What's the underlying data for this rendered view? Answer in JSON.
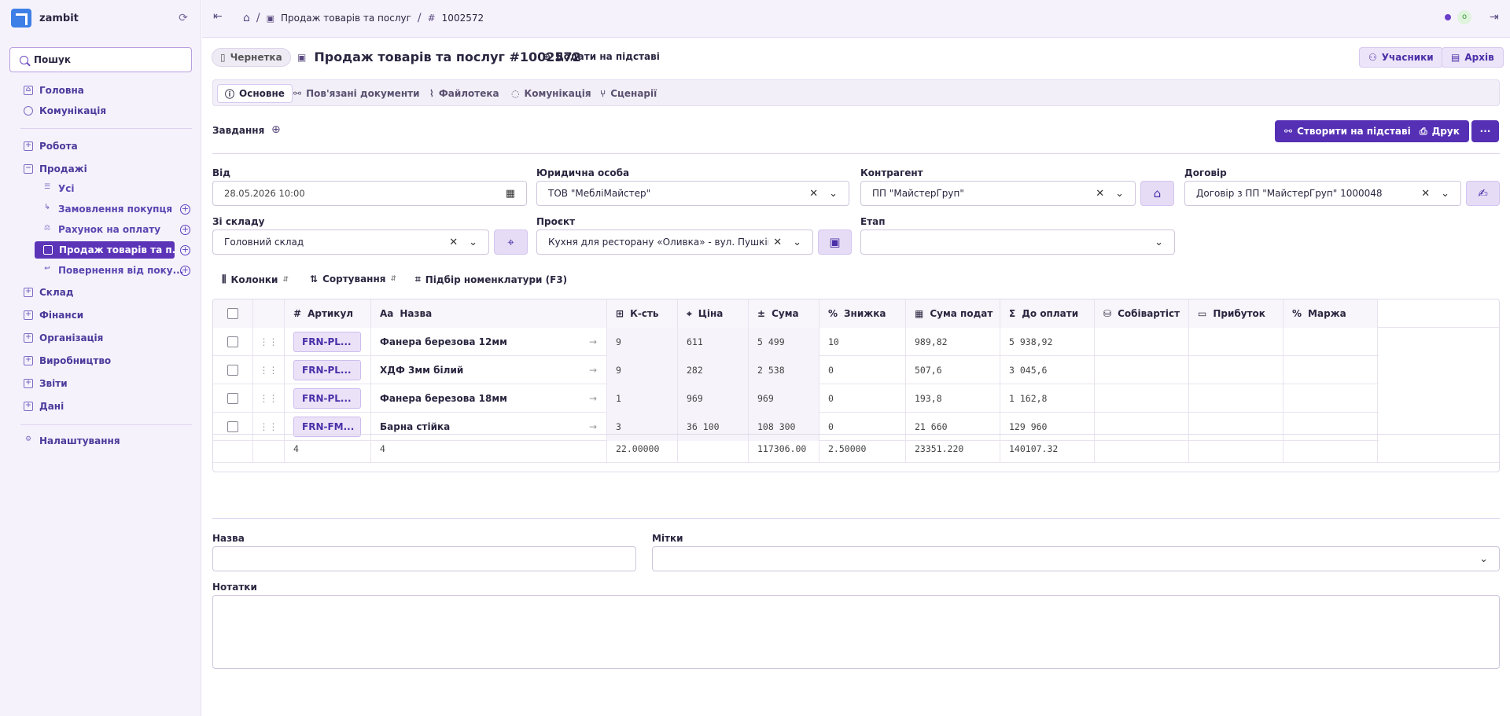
{
  "app": {
    "name": "zambit"
  },
  "search": {
    "label": "Пошук"
  },
  "nav": {
    "home": "Головна",
    "comm": "Комунікація",
    "work": "Робота",
    "sales": "Продажі",
    "sales_items": [
      "Усі",
      "Замовлення покупця",
      "Рахунок на оплату",
      "Продаж товарів та п...",
      "Повернення від поку..."
    ],
    "warehouse": "Склад",
    "finance": "Фінанси",
    "org": "Організація",
    "production": "Виробництво",
    "reports": "Звіти",
    "data": "Дані",
    "settings": "Налаштування"
  },
  "breadcrumb": {
    "doc": "Продаж товарів та послуг",
    "num": "1002572"
  },
  "user": {
    "initial": "o"
  },
  "header": {
    "status": "Чернетка",
    "title": "Продаж товарів та послуг #1002572",
    "add_basis": "Додати на підставі",
    "participants": "Учасники",
    "archive": "Архів"
  },
  "tabs": [
    "Основне",
    "Пов'язані документи",
    "Файлотека",
    "Комунікація",
    "Сценарії"
  ],
  "tasks": {
    "label": "Завдання",
    "create_basis": "Створити на підставі",
    "print": "Друк",
    "more": "···"
  },
  "form": {
    "from_label": "Від",
    "from_value": "28.05.2026 10:00",
    "entity_label": "Юридична особа",
    "entity_value": "ТОВ \"МебліМайстер\"",
    "counterparty_label": "Контрагент",
    "counterparty_value": "ПП \"МайстерГруп\"",
    "contract_label": "Договір",
    "contract_value": "Договір з ПП \"МайстерГруп\" 1000048",
    "warehouse_label": "Зі складу",
    "warehouse_value": "Головний склад",
    "project_label": "Проєкт",
    "project_value": "Кухня для ресторану «Оливка» - вул. Пушкінсь",
    "stage_label": "Етап",
    "stage_value": ""
  },
  "toolbar": {
    "columns": "Колонки",
    "sorting": "Сортування",
    "pick": "Підбір номенклатури (F3)"
  },
  "table": {
    "headers": [
      "Артикул",
      "Назва",
      "К-сть",
      "Ціна",
      "Сума",
      "Знижка",
      "Сума подат",
      "До оплати",
      "Собівартіст",
      "Прибуток",
      "Маржа"
    ],
    "rows": [
      {
        "sku": "FRN-PL...",
        "name": "Фанера березова 12мм",
        "qty": "9",
        "price": "611",
        "sum": "5 499",
        "disc": "10",
        "tax": "989,82",
        "pay": "5 938,92"
      },
      {
        "sku": "FRN-PL...",
        "name": "ХДФ 3мм білий",
        "qty": "9",
        "price": "282",
        "sum": "2 538",
        "disc": "0",
        "tax": "507,6",
        "pay": "3 045,6"
      },
      {
        "sku": "FRN-PL...",
        "name": "Фанера березова 18мм",
        "qty": "1",
        "price": "969",
        "sum": "969",
        "disc": "0",
        "tax": "193,8",
        "pay": "1 162,8"
      },
      {
        "sku": "FRN-FM...",
        "name": "Барна стійка",
        "qty": "3",
        "price": "36 100",
        "sum": "108 300",
        "disc": "0",
        "tax": "21 660",
        "pay": "129 960"
      }
    ],
    "totals": {
      "sku": "4",
      "name": "4",
      "qty": "22.00000",
      "sum": "117306.00",
      "disc": "2.50000",
      "tax": "23351.220",
      "pay": "140107.32"
    }
  },
  "bottom": {
    "name_label": "Назва",
    "tags_label": "Мітки",
    "notes_label": "Нотатки"
  },
  "colors": {
    "accent": "#5530b5",
    "sidebar": "#f6f2fc"
  }
}
